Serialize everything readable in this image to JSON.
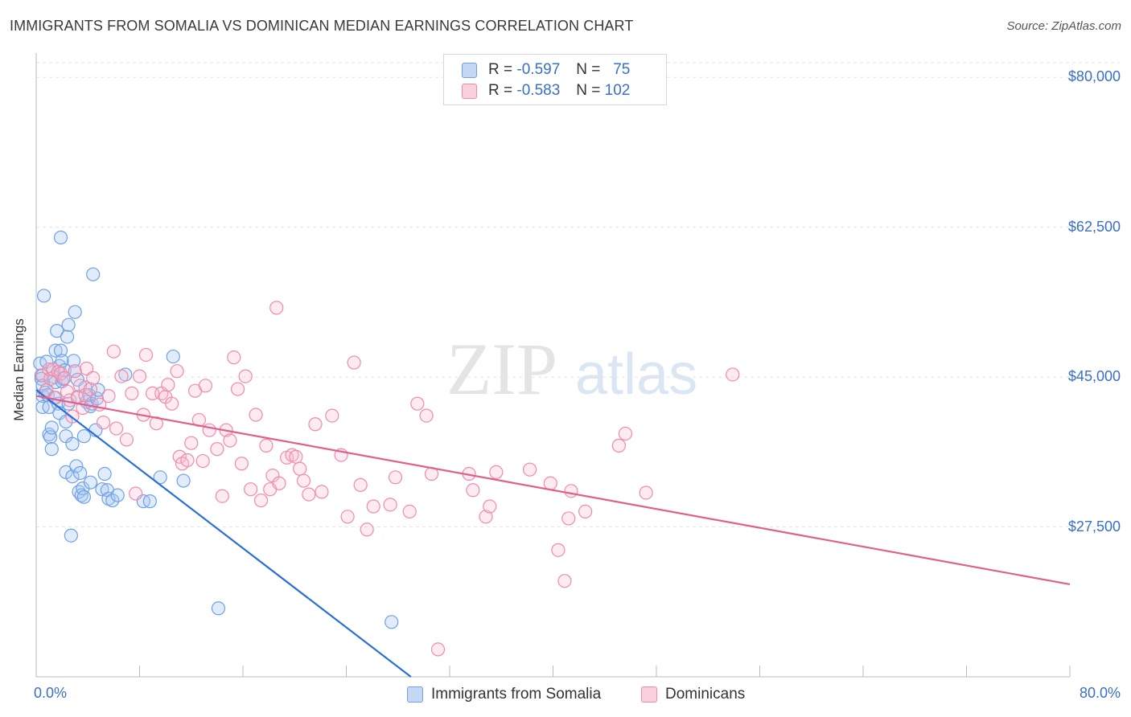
{
  "title": "IMMIGRANTS FROM SOMALIA VS DOMINICAN MEDIAN EARNINGS CORRELATION CHART",
  "source": "Source: ZipAtlas.com",
  "watermark": {
    "zip": "ZIP",
    "atlas": "atlas"
  },
  "stats": {
    "somalia": {
      "r_label": "R =",
      "r": "-0.597",
      "n_label": "N =",
      "n": "75"
    },
    "dominican": {
      "r_label": "R =",
      "r": "-0.583",
      "n_label": "N =",
      "n": "102"
    }
  },
  "legend": {
    "somalia": "Immigrants from Somalia",
    "dominican": "Dominicans"
  },
  "colors": {
    "somalia": "#6fa0e6",
    "somalia_line": "#2a6fd6",
    "dominican": "#f08aaa",
    "dominican_line": "#e0608c",
    "axis_text": "#3a6fc4"
  },
  "chart_data": {
    "type": "scatter",
    "title": "IMMIGRANTS FROM SOMALIA VS DOMINICAN MEDIAN EARNINGS CORRELATION CHART",
    "xlabel": "",
    "ylabel": "Median Earnings",
    "xlim": [
      0,
      80
    ],
    "ylim": [
      10000,
      82000
    ],
    "x_tick_labels": [
      "0.0%",
      "80.0%"
    ],
    "y_ticks": [
      27500,
      45000,
      62500,
      80000
    ],
    "y_tick_labels": [
      "$27,500",
      "$45,000",
      "$62,500",
      "$80,000"
    ],
    "grid": "horizontal dashed",
    "series": [
      {
        "name": "Immigrants from Somalia",
        "points": [
          [
            0.3,
            46.6
          ],
          [
            0.4,
            45.2
          ],
          [
            0.4,
            44.8
          ],
          [
            0.5,
            44.0
          ],
          [
            0.5,
            42.8
          ],
          [
            0.5,
            41.5
          ],
          [
            0.6,
            54.5
          ],
          [
            0.7,
            43.2
          ],
          [
            0.8,
            46.8
          ],
          [
            0.9,
            42.9
          ],
          [
            1.0,
            41.5
          ],
          [
            1.0,
            38.3
          ],
          [
            1.1,
            38.0
          ],
          [
            1.2,
            36.6
          ],
          [
            1.2,
            39.1
          ],
          [
            1.3,
            45.9
          ],
          [
            1.4,
            42.6
          ],
          [
            1.4,
            45.0
          ],
          [
            1.5,
            44.4
          ],
          [
            1.5,
            48.1
          ],
          [
            1.6,
            50.4
          ],
          [
            1.7,
            41.9
          ],
          [
            1.8,
            40.8
          ],
          [
            1.8,
            46.3
          ],
          [
            1.9,
            61.3
          ],
          [
            1.9,
            48.1
          ],
          [
            2.0,
            46.9
          ],
          [
            2.0,
            44.5
          ],
          [
            2.1,
            44.8
          ],
          [
            2.2,
            45.8
          ],
          [
            2.3,
            33.9
          ],
          [
            2.3,
            38.1
          ],
          [
            2.3,
            39.8
          ],
          [
            2.4,
            49.7
          ],
          [
            2.5,
            51.1
          ],
          [
            2.5,
            41.9
          ],
          [
            2.7,
            26.5
          ],
          [
            2.8,
            37.2
          ],
          [
            2.8,
            33.4
          ],
          [
            2.9,
            46.9
          ],
          [
            3.0,
            45.7
          ],
          [
            3.0,
            52.6
          ],
          [
            3.1,
            34.6
          ],
          [
            3.2,
            44.7
          ],
          [
            3.2,
            42.6
          ],
          [
            3.3,
            31.6
          ],
          [
            3.4,
            33.8
          ],
          [
            3.5,
            31.2
          ],
          [
            3.6,
            32.0
          ],
          [
            3.7,
            31.0
          ],
          [
            3.7,
            38.1
          ],
          [
            3.8,
            43.8
          ],
          [
            3.9,
            42.1
          ],
          [
            4.1,
            42.9
          ],
          [
            4.2,
            32.7
          ],
          [
            4.2,
            41.6
          ],
          [
            4.3,
            41.9
          ],
          [
            4.4,
            57.0
          ],
          [
            4.6,
            38.8
          ],
          [
            4.7,
            42.5
          ],
          [
            4.8,
            43.5
          ],
          [
            5.1,
            31.9
          ],
          [
            5.3,
            33.7
          ],
          [
            5.5,
            31.8
          ],
          [
            5.6,
            30.8
          ],
          [
            5.9,
            30.6
          ],
          [
            6.3,
            31.2
          ],
          [
            6.9,
            45.3
          ],
          [
            8.3,
            30.5
          ],
          [
            8.8,
            30.5
          ],
          [
            9.6,
            33.3
          ],
          [
            10.6,
            47.4
          ],
          [
            11.4,
            32.9
          ],
          [
            14.1,
            18.0
          ],
          [
            27.5,
            16.4
          ]
        ]
      },
      {
        "name": "Dominicans",
        "points": [
          [
            0.5,
            45.2
          ],
          [
            0.8,
            43.5
          ],
          [
            1.0,
            45.9
          ],
          [
            1.1,
            44.8
          ],
          [
            1.3,
            45.9
          ],
          [
            1.5,
            42.6
          ],
          [
            1.7,
            45.6
          ],
          [
            1.9,
            45.4
          ],
          [
            2.2,
            44.9
          ],
          [
            2.4,
            43.3
          ],
          [
            2.6,
            42.3
          ],
          [
            2.8,
            40.4
          ],
          [
            3.0,
            45.7
          ],
          [
            3.2,
            42.7
          ],
          [
            3.4,
            44.0
          ],
          [
            3.6,
            41.4
          ],
          [
            3.8,
            42.9
          ],
          [
            3.9,
            46.0
          ],
          [
            4.2,
            43.6
          ],
          [
            4.4,
            44.9
          ],
          [
            4.9,
            41.8
          ],
          [
            5.2,
            39.7
          ],
          [
            5.6,
            42.8
          ],
          [
            6.0,
            48.0
          ],
          [
            6.2,
            39.0
          ],
          [
            6.6,
            45.1
          ],
          [
            7.0,
            37.7
          ],
          [
            7.4,
            43.1
          ],
          [
            7.7,
            31.4
          ],
          [
            8.0,
            45.1
          ],
          [
            8.3,
            40.6
          ],
          [
            8.5,
            47.6
          ],
          [
            9.0,
            43.1
          ],
          [
            9.3,
            39.6
          ],
          [
            9.7,
            43.1
          ],
          [
            10.0,
            42.7
          ],
          [
            10.2,
            44.1
          ],
          [
            10.5,
            41.9
          ],
          [
            10.9,
            45.7
          ],
          [
            11.1,
            35.7
          ],
          [
            11.3,
            34.9
          ],
          [
            11.7,
            35.3
          ],
          [
            12.0,
            37.3
          ],
          [
            12.3,
            43.4
          ],
          [
            12.6,
            40.0
          ],
          [
            12.9,
            35.2
          ],
          [
            13.1,
            44.0
          ],
          [
            13.4,
            38.8
          ],
          [
            14.0,
            36.6
          ],
          [
            14.4,
            31.1
          ],
          [
            14.7,
            38.8
          ],
          [
            15.0,
            37.6
          ],
          [
            15.3,
            47.3
          ],
          [
            15.6,
            43.6
          ],
          [
            15.9,
            34.9
          ],
          [
            16.2,
            45.1
          ],
          [
            16.6,
            31.9
          ],
          [
            17.0,
            40.6
          ],
          [
            17.4,
            30.6
          ],
          [
            17.8,
            37.0
          ],
          [
            18.1,
            31.9
          ],
          [
            18.3,
            33.5
          ],
          [
            18.6,
            53.1
          ],
          [
            18.8,
            32.6
          ],
          [
            19.4,
            35.6
          ],
          [
            19.8,
            35.9
          ],
          [
            20.1,
            35.7
          ],
          [
            20.4,
            34.3
          ],
          [
            20.7,
            32.9
          ],
          [
            21.1,
            31.3
          ],
          [
            21.6,
            39.5
          ],
          [
            22.1,
            31.6
          ],
          [
            22.9,
            40.5
          ],
          [
            23.6,
            35.9
          ],
          [
            24.1,
            28.7
          ],
          [
            24.6,
            46.7
          ],
          [
            25.1,
            32.4
          ],
          [
            25.6,
            27.2
          ],
          [
            26.1,
            29.9
          ],
          [
            27.4,
            30.1
          ],
          [
            27.8,
            33.3
          ],
          [
            28.9,
            29.3
          ],
          [
            29.5,
            41.9
          ],
          [
            30.2,
            40.5
          ],
          [
            30.6,
            33.7
          ],
          [
            31.1,
            13.2
          ],
          [
            33.5,
            33.7
          ],
          [
            33.8,
            31.8
          ],
          [
            34.8,
            28.7
          ],
          [
            35.1,
            29.9
          ],
          [
            35.6,
            33.9
          ],
          [
            38.2,
            34.2
          ],
          [
            39.8,
            32.6
          ],
          [
            40.4,
            24.8
          ],
          [
            40.9,
            21.2
          ],
          [
            41.2,
            28.5
          ],
          [
            41.4,
            31.7
          ],
          [
            42.5,
            29.3
          ],
          [
            45.1,
            37.0
          ],
          [
            45.6,
            38.4
          ],
          [
            47.2,
            31.5
          ],
          [
            53.9,
            45.3
          ]
        ]
      }
    ],
    "trend_lines": [
      {
        "name": "Immigrants from Somalia",
        "x": [
          0,
          29
        ],
        "y": [
          43.5,
          10.0
        ]
      },
      {
        "name": "Dominicans",
        "x": [
          0,
          80
        ],
        "y": [
          42.8,
          20.8
        ]
      }
    ]
  }
}
